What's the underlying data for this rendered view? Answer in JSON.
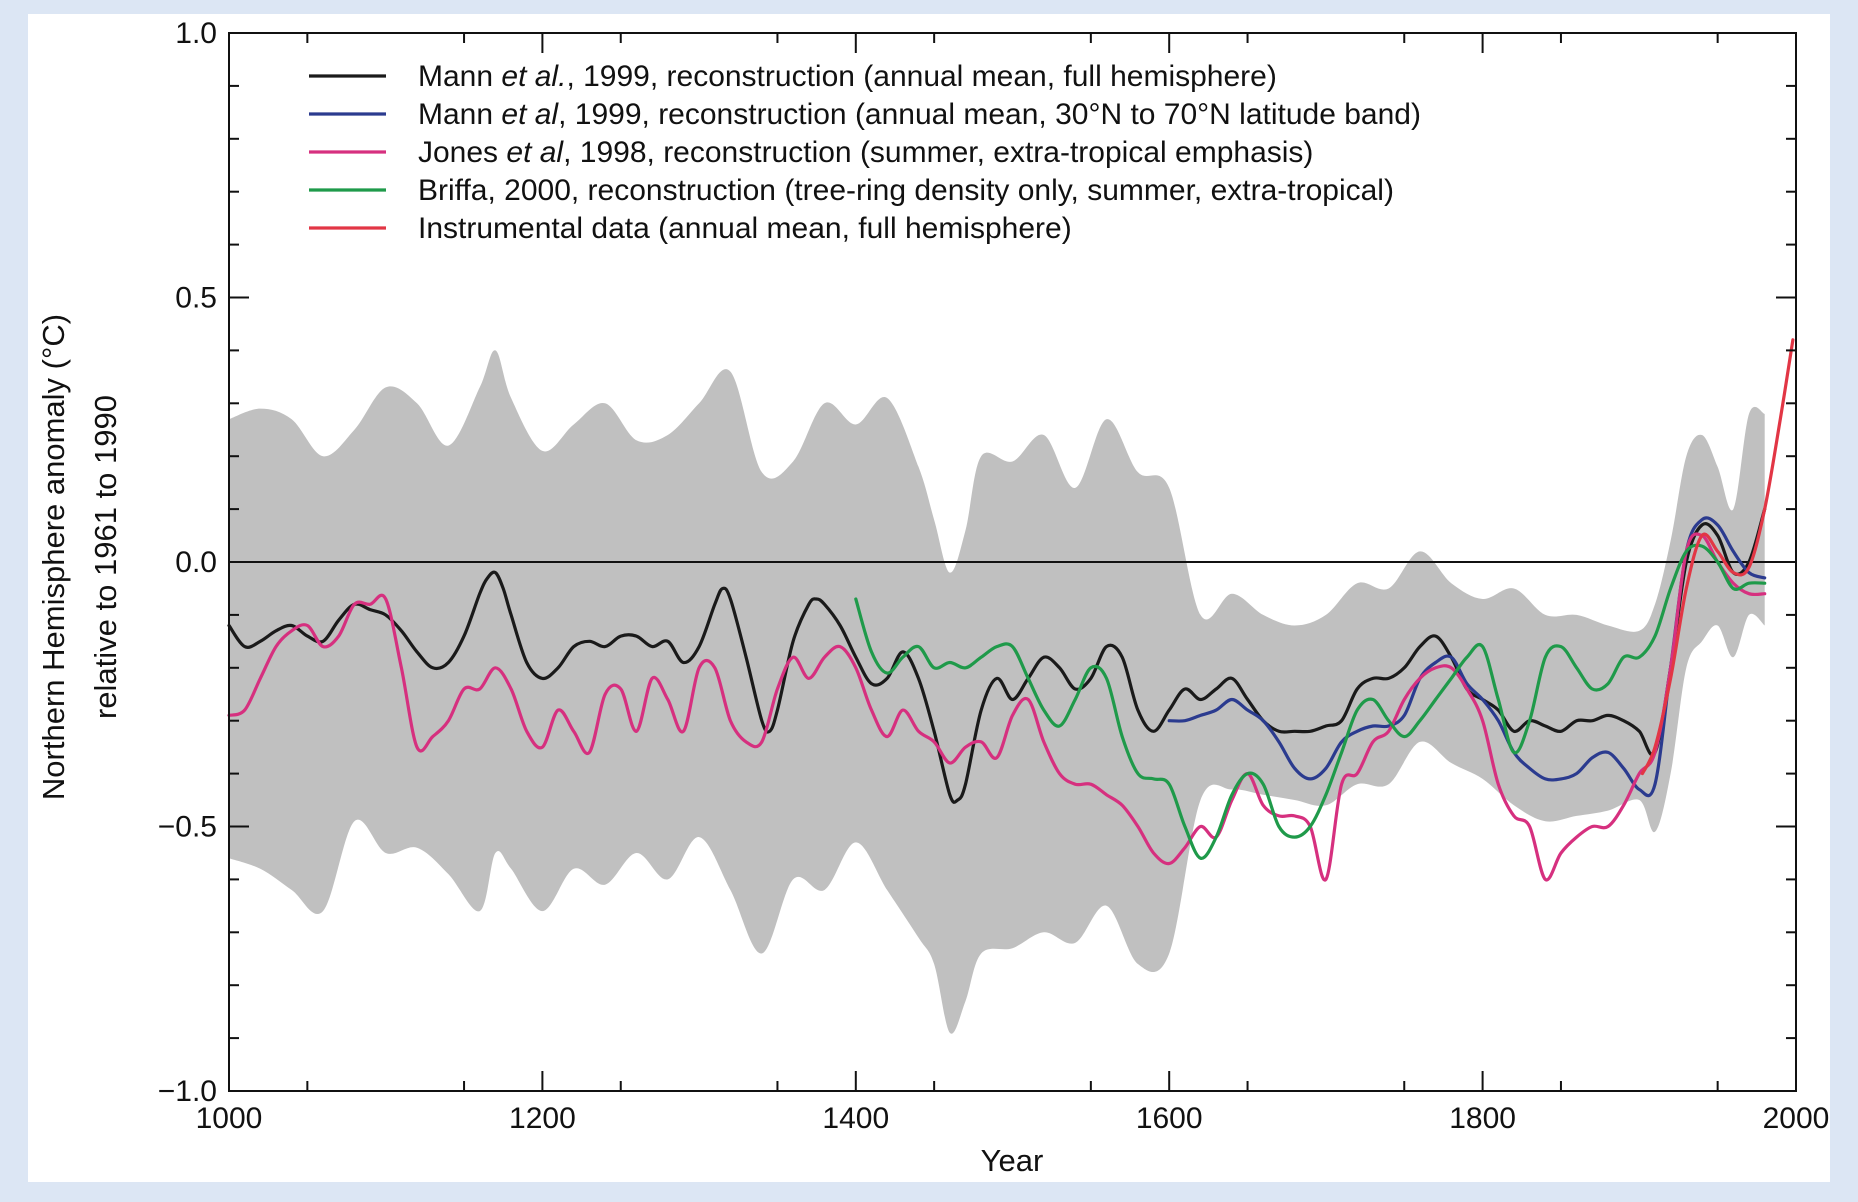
{
  "chart_data": {
    "type": "line",
    "title": "",
    "xlabel": "Year",
    "ylabel_line1": "Northern Hemisphere anomaly (°C)",
    "ylabel_line2": "relative to 1961 to 1990",
    "xlim": [
      1000,
      2000
    ],
    "ylim": [
      -1.0,
      1.0
    ],
    "x_ticks": [
      "1000",
      "1200",
      "1400",
      "1600",
      "1800",
      "2000"
    ],
    "x_tick_values": [
      1000,
      1200,
      1400,
      1600,
      1800,
      2000
    ],
    "y_ticks": [
      "1.0",
      "0.5",
      "0.0",
      "−0.5",
      "−1.0"
    ],
    "y_tick_values": [
      1.0,
      0.5,
      0.0,
      -0.5,
      -1.0
    ],
    "grid": false,
    "zero_line": true,
    "legend_position": "top-left",
    "uncertainty_band": {
      "color": "#c0c0c0",
      "x": [
        1000,
        1020,
        1040,
        1060,
        1080,
        1100,
        1120,
        1140,
        1160,
        1170,
        1180,
        1200,
        1220,
        1240,
        1260,
        1280,
        1300,
        1320,
        1340,
        1360,
        1380,
        1400,
        1420,
        1440,
        1450,
        1460,
        1470,
        1480,
        1500,
        1520,
        1540,
        1560,
        1580,
        1600,
        1620,
        1640,
        1660,
        1680,
        1700,
        1720,
        1740,
        1760,
        1780,
        1800,
        1820,
        1840,
        1860,
        1880,
        1900,
        1910,
        1920,
        1930,
        1940,
        1950,
        1960,
        1970,
        1980
      ],
      "upper": [
        0.27,
        0.29,
        0.27,
        0.2,
        0.25,
        0.33,
        0.3,
        0.22,
        0.33,
        0.4,
        0.31,
        0.21,
        0.26,
        0.3,
        0.23,
        0.24,
        0.3,
        0.36,
        0.17,
        0.19,
        0.3,
        0.26,
        0.31,
        0.18,
        0.08,
        -0.02,
        0.06,
        0.2,
        0.19,
        0.24,
        0.14,
        0.27,
        0.17,
        0.14,
        -0.1,
        -0.06,
        -0.1,
        -0.12,
        -0.1,
        -0.04,
        -0.05,
        0.02,
        -0.04,
        -0.07,
        -0.05,
        -0.1,
        -0.1,
        -0.12,
        -0.13,
        -0.08,
        0.04,
        0.2,
        0.24,
        0.18,
        0.1,
        0.28,
        0.28
      ],
      "lower": [
        -0.56,
        -0.58,
        -0.62,
        -0.66,
        -0.49,
        -0.55,
        -0.54,
        -0.59,
        -0.66,
        -0.55,
        -0.58,
        -0.66,
        -0.58,
        -0.61,
        -0.55,
        -0.6,
        -0.52,
        -0.62,
        -0.74,
        -0.6,
        -0.62,
        -0.53,
        -0.62,
        -0.71,
        -0.76,
        -0.89,
        -0.83,
        -0.74,
        -0.73,
        -0.7,
        -0.72,
        -0.65,
        -0.76,
        -0.74,
        -0.45,
        -0.43,
        -0.44,
        -0.45,
        -0.46,
        -0.42,
        -0.42,
        -0.34,
        -0.38,
        -0.41,
        -0.46,
        -0.49,
        -0.48,
        -0.47,
        -0.45,
        -0.51,
        -0.4,
        -0.2,
        -0.15,
        -0.12,
        -0.18,
        -0.1,
        -0.12
      ]
    },
    "series": [
      {
        "name": "Mann et al., 1999, reconstruction (annual mean, full hemisphere)",
        "legend_prefix": "Mann ",
        "legend_italic": "et al.",
        "legend_suffix": ", 1999, reconstruction (annual mean, full hemisphere)",
        "color": "#1a1a1a",
        "x": [
          1000,
          1010,
          1020,
          1030,
          1040,
          1050,
          1060,
          1070,
          1080,
          1090,
          1100,
          1110,
          1120,
          1130,
          1140,
          1150,
          1160,
          1165,
          1170,
          1175,
          1180,
          1190,
          1200,
          1210,
          1220,
          1230,
          1240,
          1250,
          1260,
          1270,
          1280,
          1290,
          1300,
          1310,
          1315,
          1320,
          1330,
          1340,
          1345,
          1350,
          1360,
          1370,
          1375,
          1380,
          1390,
          1400,
          1410,
          1420,
          1430,
          1440,
          1450,
          1460,
          1465,
          1470,
          1480,
          1490,
          1500,
          1510,
          1520,
          1530,
          1540,
          1550,
          1560,
          1570,
          1580,
          1590,
          1600,
          1610,
          1620,
          1630,
          1640,
          1650,
          1660,
          1670,
          1680,
          1690,
          1700,
          1710,
          1720,
          1730,
          1740,
          1750,
          1760,
          1770,
          1780,
          1790,
          1800,
          1810,
          1820,
          1830,
          1840,
          1850,
          1860,
          1870,
          1880,
          1890,
          1900,
          1910,
          1920,
          1930,
          1940,
          1950,
          1960,
          1970,
          1980
        ],
        "values": [
          -0.12,
          -0.16,
          -0.15,
          -0.13,
          -0.12,
          -0.14,
          -0.15,
          -0.11,
          -0.08,
          -0.09,
          -0.1,
          -0.13,
          -0.17,
          -0.2,
          -0.19,
          -0.14,
          -0.06,
          -0.03,
          -0.02,
          -0.05,
          -0.1,
          -0.19,
          -0.22,
          -0.2,
          -0.16,
          -0.15,
          -0.16,
          -0.14,
          -0.14,
          -0.16,
          -0.15,
          -0.19,
          -0.16,
          -0.08,
          -0.05,
          -0.07,
          -0.18,
          -0.3,
          -0.32,
          -0.28,
          -0.15,
          -0.08,
          -0.07,
          -0.08,
          -0.12,
          -0.18,
          -0.23,
          -0.22,
          -0.17,
          -0.22,
          -0.32,
          -0.44,
          -0.45,
          -0.42,
          -0.28,
          -0.22,
          -0.26,
          -0.22,
          -0.18,
          -0.2,
          -0.24,
          -0.22,
          -0.16,
          -0.18,
          -0.28,
          -0.32,
          -0.28,
          -0.24,
          -0.26,
          -0.24,
          -0.22,
          -0.26,
          -0.3,
          -0.32,
          -0.32,
          -0.32,
          -0.31,
          -0.3,
          -0.24,
          -0.22,
          -0.22,
          -0.2,
          -0.16,
          -0.14,
          -0.18,
          -0.24,
          -0.26,
          -0.28,
          -0.32,
          -0.3,
          -0.31,
          -0.32,
          -0.3,
          -0.3,
          -0.29,
          -0.3,
          -0.32,
          -0.36,
          -0.2,
          0.0,
          0.07,
          0.05,
          -0.02,
          0.0,
          0.1
        ]
      },
      {
        "name": "Mann et al, 1999, reconstruction (annual mean, 30°N to 70°N latitude band)",
        "legend_prefix": "Mann ",
        "legend_italic": "et al",
        "legend_suffix": ", 1999, reconstruction (annual mean, 30°N to 70°N latitude band)",
        "color": "#2b3b8f",
        "x": [
          1600,
          1610,
          1620,
          1630,
          1640,
          1650,
          1660,
          1670,
          1680,
          1690,
          1700,
          1710,
          1720,
          1730,
          1740,
          1750,
          1760,
          1770,
          1780,
          1790,
          1800,
          1810,
          1820,
          1830,
          1840,
          1850,
          1860,
          1870,
          1880,
          1890,
          1900,
          1910,
          1920,
          1930,
          1940,
          1950,
          1960,
          1970,
          1980
        ],
        "values": [
          -0.3,
          -0.3,
          -0.29,
          -0.28,
          -0.26,
          -0.28,
          -0.3,
          -0.34,
          -0.39,
          -0.41,
          -0.39,
          -0.34,
          -0.32,
          -0.31,
          -0.31,
          -0.29,
          -0.22,
          -0.19,
          -0.18,
          -0.23,
          -0.26,
          -0.3,
          -0.36,
          -0.39,
          -0.41,
          -0.41,
          -0.4,
          -0.37,
          -0.36,
          -0.39,
          -0.43,
          -0.42,
          -0.2,
          0.02,
          0.08,
          0.07,
          0.02,
          -0.02,
          -0.03
        ]
      },
      {
        "name": "Jones et al, 1998, reconstruction (summer, extra-tropical emphasis)",
        "legend_prefix": "Jones ",
        "legend_italic": "et al",
        "legend_suffix": ", 1998, reconstruction (summer, extra-tropical emphasis)",
        "color": "#d6307f",
        "x": [
          1000,
          1010,
          1020,
          1030,
          1040,
          1050,
          1060,
          1070,
          1080,
          1090,
          1100,
          1110,
          1120,
          1130,
          1140,
          1150,
          1160,
          1170,
          1180,
          1190,
          1200,
          1210,
          1220,
          1230,
          1240,
          1250,
          1260,
          1270,
          1280,
          1290,
          1300,
          1310,
          1320,
          1330,
          1340,
          1350,
          1360,
          1370,
          1380,
          1390,
          1400,
          1410,
          1420,
          1430,
          1440,
          1450,
          1460,
          1470,
          1480,
          1490,
          1500,
          1510,
          1520,
          1530,
          1540,
          1550,
          1560,
          1570,
          1580,
          1590,
          1600,
          1610,
          1620,
          1630,
          1640,
          1650,
          1660,
          1670,
          1680,
          1690,
          1700,
          1710,
          1720,
          1730,
          1740,
          1750,
          1760,
          1770,
          1780,
          1790,
          1800,
          1810,
          1820,
          1830,
          1840,
          1850,
          1860,
          1870,
          1880,
          1890,
          1900,
          1910,
          1920,
          1930,
          1940,
          1950,
          1960,
          1970,
          1980
        ],
        "values": [
          -0.29,
          -0.28,
          -0.22,
          -0.16,
          -0.13,
          -0.12,
          -0.16,
          -0.14,
          -0.08,
          -0.08,
          -0.07,
          -0.2,
          -0.35,
          -0.33,
          -0.3,
          -0.24,
          -0.24,
          -0.2,
          -0.24,
          -0.32,
          -0.35,
          -0.28,
          -0.32,
          -0.36,
          -0.25,
          -0.24,
          -0.32,
          -0.22,
          -0.26,
          -0.32,
          -0.2,
          -0.2,
          -0.3,
          -0.34,
          -0.34,
          -0.24,
          -0.18,
          -0.22,
          -0.18,
          -0.16,
          -0.2,
          -0.28,
          -0.33,
          -0.28,
          -0.32,
          -0.34,
          -0.38,
          -0.35,
          -0.34,
          -0.37,
          -0.29,
          -0.26,
          -0.34,
          -0.4,
          -0.42,
          -0.42,
          -0.44,
          -0.46,
          -0.5,
          -0.55,
          -0.57,
          -0.54,
          -0.5,
          -0.52,
          -0.45,
          -0.4,
          -0.46,
          -0.48,
          -0.48,
          -0.5,
          -0.6,
          -0.42,
          -0.4,
          -0.34,
          -0.32,
          -0.26,
          -0.22,
          -0.2,
          -0.2,
          -0.24,
          -0.3,
          -0.42,
          -0.48,
          -0.5,
          -0.6,
          -0.55,
          -0.52,
          -0.5,
          -0.5,
          -0.46,
          -0.4,
          -0.36,
          -0.2,
          0.02,
          0.05,
          0.0,
          -0.04,
          -0.06,
          -0.06
        ]
      },
      {
        "name": "Briffa, 2000, reconstruction (tree-ring density only, summer, extra-tropical)",
        "legend_prefix": "Briffa, 2000, reconstruction (tree-ring density only, summer, extra-tropical)",
        "legend_italic": "",
        "legend_suffix": "",
        "color": "#1f9a4a",
        "x": [
          1400,
          1410,
          1420,
          1430,
          1440,
          1450,
          1460,
          1470,
          1480,
          1490,
          1500,
          1510,
          1520,
          1530,
          1540,
          1550,
          1560,
          1570,
          1580,
          1590,
          1600,
          1610,
          1620,
          1630,
          1640,
          1650,
          1660,
          1670,
          1680,
          1690,
          1700,
          1710,
          1720,
          1730,
          1740,
          1750,
          1760,
          1770,
          1780,
          1790,
          1800,
          1810,
          1820,
          1830,
          1840,
          1850,
          1860,
          1870,
          1880,
          1890,
          1900,
          1910,
          1920,
          1930,
          1940,
          1950,
          1960,
          1970,
          1980
        ],
        "values": [
          -0.07,
          -0.17,
          -0.21,
          -0.18,
          -0.16,
          -0.2,
          -0.19,
          -0.2,
          -0.18,
          -0.16,
          -0.16,
          -0.22,
          -0.28,
          -0.31,
          -0.26,
          -0.2,
          -0.22,
          -0.33,
          -0.4,
          -0.41,
          -0.42,
          -0.5,
          -0.56,
          -0.52,
          -0.44,
          -0.4,
          -0.42,
          -0.5,
          -0.52,
          -0.5,
          -0.44,
          -0.36,
          -0.28,
          -0.26,
          -0.3,
          -0.33,
          -0.3,
          -0.26,
          -0.22,
          -0.18,
          -0.16,
          -0.26,
          -0.36,
          -0.3,
          -0.18,
          -0.16,
          -0.2,
          -0.24,
          -0.23,
          -0.18,
          -0.18,
          -0.14,
          -0.05,
          0.02,
          0.03,
          0.0,
          -0.05,
          -0.04,
          -0.04
        ]
      },
      {
        "name": "Instrumental data (annual mean, full hemisphere)",
        "legend_prefix": "Instrumental data (annual mean, full hemisphere)",
        "legend_italic": "",
        "legend_suffix": "",
        "color": "#e23645",
        "x": [
          1902,
          1910,
          1920,
          1930,
          1940,
          1950,
          1960,
          1970,
          1980,
          1990,
          1998
        ],
        "values": [
          -0.4,
          -0.35,
          -0.22,
          -0.05,
          0.05,
          0.02,
          -0.02,
          -0.01,
          0.1,
          0.27,
          0.42
        ]
      }
    ]
  }
}
